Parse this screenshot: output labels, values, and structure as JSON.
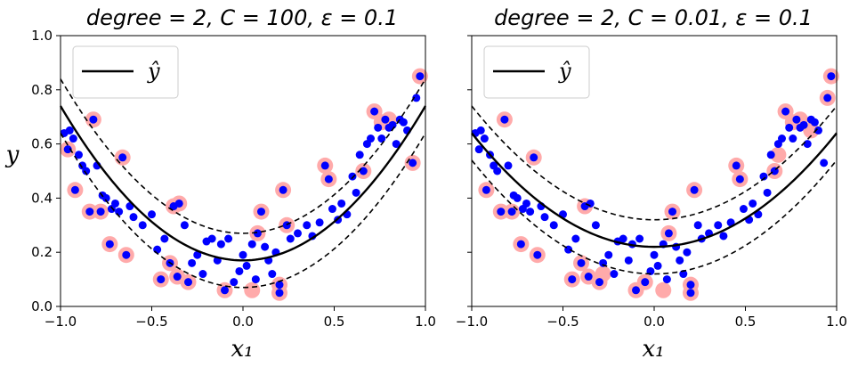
{
  "chart_data": [
    {
      "type": "scatter",
      "title": "degree = 2, C = 100, ε = 0.1",
      "xlabel": "x₁",
      "ylabel": "y",
      "xlim": [
        -1.0,
        1.0
      ],
      "ylim": [
        0.0,
        1.0
      ],
      "xticks": [
        "−1.0",
        "−0.5",
        "0.0",
        "0.5",
        "1.0"
      ],
      "yticks": [
        "0.0",
        "0.2",
        "0.4",
        "0.6",
        "0.8",
        "1.0"
      ],
      "grid": false,
      "legend": {
        "position": "top-left",
        "entries": [
          "ŷ"
        ]
      },
      "regression": {
        "coefficients": [
          0.17,
          0.0,
          0.57
        ],
        "epsilon": 0.1
      },
      "points": [
        [
          -0.98,
          0.64
        ],
        [
          -0.96,
          0.58
        ],
        [
          -0.95,
          0.65
        ],
        [
          -0.93,
          0.62
        ],
        [
          -0.92,
          0.43
        ],
        [
          -0.9,
          0.56
        ],
        [
          -0.88,
          0.52
        ],
        [
          -0.86,
          0.5
        ],
        [
          -0.84,
          0.35
        ],
        [
          -0.82,
          0.69
        ],
        [
          -0.8,
          0.52
        ],
        [
          -0.78,
          0.35
        ],
        [
          -0.77,
          0.41
        ],
        [
          -0.75,
          0.4
        ],
        [
          -0.73,
          0.23
        ],
        [
          -0.72,
          0.36
        ],
        [
          -0.7,
          0.38
        ],
        [
          -0.68,
          0.35
        ],
        [
          -0.66,
          0.55
        ],
        [
          -0.64,
          0.19
        ],
        [
          -0.62,
          0.37
        ],
        [
          -0.6,
          0.33
        ],
        [
          -0.55,
          0.3
        ],
        [
          -0.5,
          0.34
        ],
        [
          -0.47,
          0.21
        ],
        [
          -0.45,
          0.1
        ],
        [
          -0.43,
          0.25
        ],
        [
          -0.4,
          0.16
        ],
        [
          -0.38,
          0.37
        ],
        [
          -0.36,
          0.11
        ],
        [
          -0.35,
          0.38
        ],
        [
          -0.32,
          0.3
        ],
        [
          -0.3,
          0.09
        ],
        [
          -0.28,
          0.16
        ],
        [
          -0.25,
          0.19
        ],
        [
          -0.22,
          0.12
        ],
        [
          -0.2,
          0.24
        ],
        [
          -0.17,
          0.25
        ],
        [
          -0.14,
          0.17
        ],
        [
          -0.12,
          0.23
        ],
        [
          -0.1,
          0.06
        ],
        [
          -0.08,
          0.25
        ],
        [
          -0.05,
          0.09
        ],
        [
          -0.02,
          0.13
        ],
        [
          0.0,
          0.19
        ],
        [
          0.02,
          0.15
        ],
        [
          0.05,
          0.23
        ],
        [
          0.07,
          0.1
        ],
        [
          0.08,
          0.27
        ],
        [
          0.1,
          0.35
        ],
        [
          0.12,
          0.22
        ],
        [
          0.14,
          0.17
        ],
        [
          0.16,
          0.12
        ],
        [
          0.18,
          0.2
        ],
        [
          0.2,
          0.05
        ],
        [
          0.2,
          0.08
        ],
        [
          0.22,
          0.43
        ],
        [
          0.24,
          0.3
        ],
        [
          0.26,
          0.25
        ],
        [
          0.3,
          0.27
        ],
        [
          0.35,
          0.3
        ],
        [
          0.38,
          0.26
        ],
        [
          0.42,
          0.31
        ],
        [
          0.45,
          0.52
        ],
        [
          0.47,
          0.47
        ],
        [
          0.49,
          0.36
        ],
        [
          0.52,
          0.32
        ],
        [
          0.54,
          0.38
        ],
        [
          0.57,
          0.34
        ],
        [
          0.6,
          0.48
        ],
        [
          0.62,
          0.42
        ],
        [
          0.64,
          0.56
        ],
        [
          0.66,
          0.5
        ],
        [
          0.68,
          0.6
        ],
        [
          0.7,
          0.62
        ],
        [
          0.72,
          0.72
        ],
        [
          0.74,
          0.66
        ],
        [
          0.76,
          0.62
        ],
        [
          0.78,
          0.69
        ],
        [
          0.8,
          0.66
        ],
        [
          0.82,
          0.67
        ],
        [
          0.84,
          0.6
        ],
        [
          0.86,
          0.69
        ],
        [
          0.88,
          0.68
        ],
        [
          0.9,
          0.65
        ],
        [
          0.93,
          0.53
        ],
        [
          0.95,
          0.77
        ],
        [
          0.97,
          0.85
        ]
      ],
      "support_vectors": [
        [
          -0.96,
          0.58
        ],
        [
          -0.92,
          0.43
        ],
        [
          -0.84,
          0.35
        ],
        [
          -0.82,
          0.69
        ],
        [
          -0.78,
          0.35
        ],
        [
          -0.73,
          0.23
        ],
        [
          -0.66,
          0.55
        ],
        [
          -0.64,
          0.19
        ],
        [
          -0.45,
          0.1
        ],
        [
          -0.4,
          0.16
        ],
        [
          -0.38,
          0.37
        ],
        [
          -0.36,
          0.11
        ],
        [
          -0.35,
          0.38
        ],
        [
          -0.3,
          0.09
        ],
        [
          -0.1,
          0.06
        ],
        [
          0.05,
          0.06
        ],
        [
          0.08,
          0.27
        ],
        [
          0.1,
          0.35
        ],
        [
          0.2,
          0.05
        ],
        [
          0.2,
          0.08
        ],
        [
          0.22,
          0.43
        ],
        [
          0.24,
          0.3
        ],
        [
          0.45,
          0.52
        ],
        [
          0.47,
          0.47
        ],
        [
          0.66,
          0.5
        ],
        [
          0.72,
          0.72
        ],
        [
          0.76,
          0.68
        ],
        [
          0.8,
          0.69
        ],
        [
          0.93,
          0.53
        ],
        [
          0.97,
          0.85
        ]
      ]
    },
    {
      "type": "scatter",
      "title": "degree = 2, C = 0.01, ε = 0.1",
      "xlabel": "x₁",
      "ylabel": "",
      "xlim": [
        -1.0,
        1.0
      ],
      "ylim": [
        0.0,
        1.0
      ],
      "xticks": [
        "−1.0",
        "−0.5",
        "0.0",
        "0.5",
        "1.0"
      ],
      "yticks": [],
      "grid": false,
      "legend": {
        "position": "top-left",
        "entries": [
          "ŷ"
        ]
      },
      "regression": {
        "coefficients": [
          0.22,
          0.0,
          0.42
        ],
        "epsilon": 0.1
      },
      "points": [
        [
          -0.98,
          0.64
        ],
        [
          -0.96,
          0.58
        ],
        [
          -0.95,
          0.65
        ],
        [
          -0.93,
          0.62
        ],
        [
          -0.92,
          0.43
        ],
        [
          -0.9,
          0.56
        ],
        [
          -0.88,
          0.52
        ],
        [
          -0.86,
          0.5
        ],
        [
          -0.84,
          0.35
        ],
        [
          -0.82,
          0.69
        ],
        [
          -0.8,
          0.52
        ],
        [
          -0.78,
          0.35
        ],
        [
          -0.77,
          0.41
        ],
        [
          -0.75,
          0.4
        ],
        [
          -0.73,
          0.23
        ],
        [
          -0.72,
          0.36
        ],
        [
          -0.7,
          0.38
        ],
        [
          -0.68,
          0.35
        ],
        [
          -0.66,
          0.55
        ],
        [
          -0.64,
          0.19
        ],
        [
          -0.62,
          0.37
        ],
        [
          -0.6,
          0.33
        ],
        [
          -0.55,
          0.3
        ],
        [
          -0.5,
          0.34
        ],
        [
          -0.47,
          0.21
        ],
        [
          -0.45,
          0.1
        ],
        [
          -0.43,
          0.25
        ],
        [
          -0.4,
          0.16
        ],
        [
          -0.38,
          0.37
        ],
        [
          -0.36,
          0.11
        ],
        [
          -0.35,
          0.38
        ],
        [
          -0.32,
          0.3
        ],
        [
          -0.3,
          0.09
        ],
        [
          -0.28,
          0.16
        ],
        [
          -0.25,
          0.19
        ],
        [
          -0.22,
          0.12
        ],
        [
          -0.2,
          0.24
        ],
        [
          -0.17,
          0.25
        ],
        [
          -0.14,
          0.17
        ],
        [
          -0.12,
          0.23
        ],
        [
          -0.1,
          0.06
        ],
        [
          -0.08,
          0.25
        ],
        [
          -0.05,
          0.09
        ],
        [
          -0.02,
          0.13
        ],
        [
          0.0,
          0.19
        ],
        [
          0.02,
          0.15
        ],
        [
          0.05,
          0.23
        ],
        [
          0.07,
          0.1
        ],
        [
          0.08,
          0.27
        ],
        [
          0.1,
          0.35
        ],
        [
          0.12,
          0.22
        ],
        [
          0.14,
          0.17
        ],
        [
          0.16,
          0.12
        ],
        [
          0.18,
          0.2
        ],
        [
          0.2,
          0.05
        ],
        [
          0.2,
          0.08
        ],
        [
          0.22,
          0.43
        ],
        [
          0.24,
          0.3
        ],
        [
          0.26,
          0.25
        ],
        [
          0.3,
          0.27
        ],
        [
          0.35,
          0.3
        ],
        [
          0.38,
          0.26
        ],
        [
          0.42,
          0.31
        ],
        [
          0.45,
          0.52
        ],
        [
          0.47,
          0.47
        ],
        [
          0.49,
          0.36
        ],
        [
          0.52,
          0.32
        ],
        [
          0.54,
          0.38
        ],
        [
          0.57,
          0.34
        ],
        [
          0.6,
          0.48
        ],
        [
          0.62,
          0.42
        ],
        [
          0.64,
          0.56
        ],
        [
          0.66,
          0.5
        ],
        [
          0.68,
          0.6
        ],
        [
          0.7,
          0.62
        ],
        [
          0.72,
          0.72
        ],
        [
          0.74,
          0.66
        ],
        [
          0.76,
          0.62
        ],
        [
          0.78,
          0.69
        ],
        [
          0.8,
          0.66
        ],
        [
          0.82,
          0.67
        ],
        [
          0.84,
          0.6
        ],
        [
          0.86,
          0.69
        ],
        [
          0.88,
          0.68
        ],
        [
          0.9,
          0.65
        ],
        [
          0.93,
          0.53
        ],
        [
          0.95,
          0.77
        ],
        [
          0.97,
          0.85
        ]
      ],
      "support_vectors": [
        [
          -0.92,
          0.43
        ],
        [
          -0.84,
          0.35
        ],
        [
          -0.82,
          0.69
        ],
        [
          -0.78,
          0.35
        ],
        [
          -0.73,
          0.23
        ],
        [
          -0.66,
          0.55
        ],
        [
          -0.64,
          0.19
        ],
        [
          -0.45,
          0.1
        ],
        [
          -0.4,
          0.16
        ],
        [
          -0.38,
          0.37
        ],
        [
          -0.36,
          0.11
        ],
        [
          -0.3,
          0.09
        ],
        [
          -0.28,
          0.12
        ],
        [
          -0.1,
          0.06
        ],
        [
          -0.05,
          0.09
        ],
        [
          0.05,
          0.06
        ],
        [
          0.08,
          0.27
        ],
        [
          0.1,
          0.35
        ],
        [
          0.2,
          0.05
        ],
        [
          0.2,
          0.08
        ],
        [
          0.22,
          0.43
        ],
        [
          0.45,
          0.52
        ],
        [
          0.47,
          0.47
        ],
        [
          0.66,
          0.5
        ],
        [
          0.68,
          0.56
        ],
        [
          0.72,
          0.72
        ],
        [
          0.76,
          0.68
        ],
        [
          0.8,
          0.69
        ],
        [
          0.86,
          0.65
        ],
        [
          0.95,
          0.77
        ],
        [
          0.97,
          0.85
        ]
      ]
    }
  ],
  "colors": {
    "points": "#0000ff",
    "support_vectors": "#ffaaaa",
    "curve": "#000000"
  }
}
